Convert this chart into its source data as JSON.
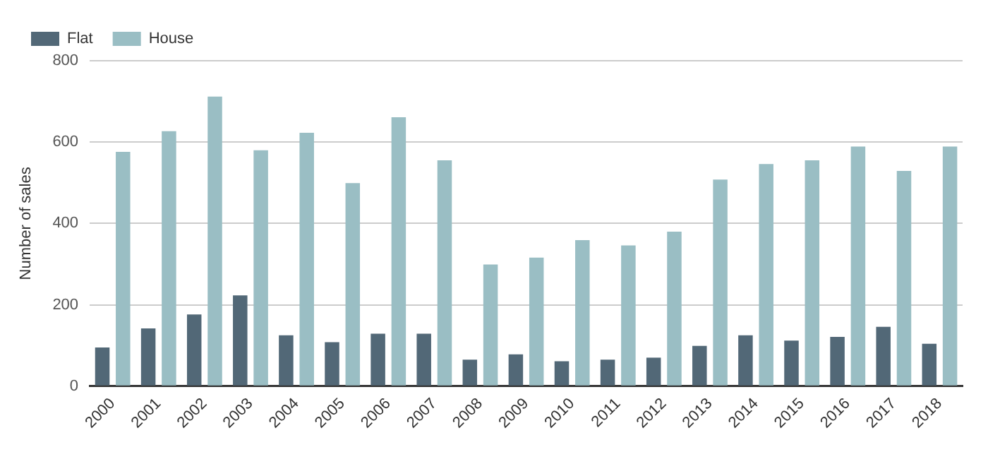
{
  "chart_data": {
    "type": "bar",
    "ylabel": "Number of sales",
    "categories": [
      "2000",
      "2001",
      "2002",
      "2003",
      "2004",
      "2005",
      "2006",
      "2007",
      "2008",
      "2009",
      "2010",
      "2011",
      "2012",
      "2013",
      "2014",
      "2015",
      "2016",
      "2017",
      "2018"
    ],
    "series": [
      {
        "name": "Flat",
        "color": "#526877",
        "values": [
          95,
          142,
          176,
          223,
          125,
          108,
          129,
          129,
          65,
          78,
          61,
          65,
          70,
          99,
          125,
          112,
          121,
          146,
          104
        ]
      },
      {
        "name": "House",
        "color": "#9abec4",
        "values": [
          576,
          627,
          712,
          580,
          623,
          499,
          661,
          555,
          299,
          316,
          359,
          346,
          380,
          508,
          546,
          555,
          589,
          529,
          589
        ]
      }
    ],
    "ylim": [
      0,
      800
    ],
    "yticks": [
      0,
      200,
      400,
      600,
      800
    ],
    "grid": "y",
    "legend": "top left"
  }
}
